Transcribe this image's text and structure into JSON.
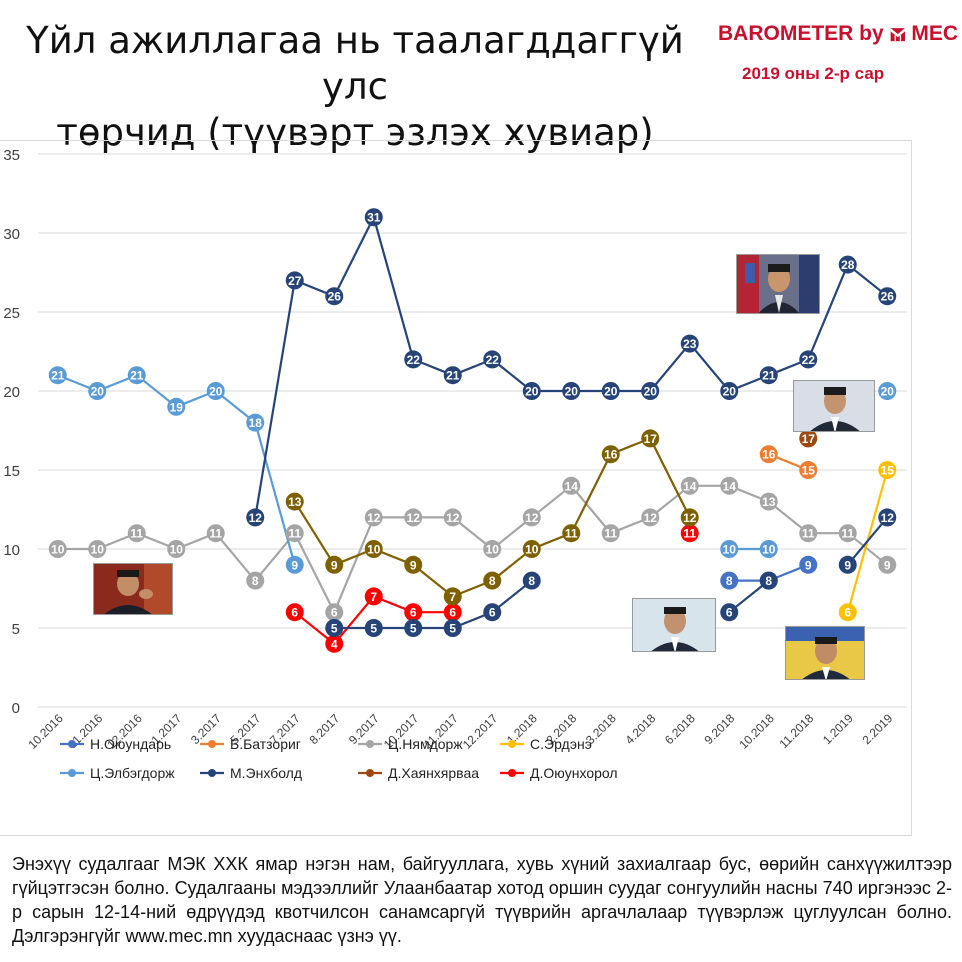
{
  "header": {
    "title_line1": "Үйл ажиллагаа нь таалагддаггүй улс",
    "title_line2": "төрчид (түүвэрт эзлэх хувиар)",
    "brand": "BAROMETER by",
    "brand_mark": "MEC",
    "subtitle": "2019 оны 2-р сар"
  },
  "colors": {
    "brand": "#c8102e",
    "grid": "#d9d9d9"
  },
  "chart_data": {
    "type": "line",
    "ylim": [
      0,
      35
    ],
    "yticks": [
      0,
      5,
      10,
      15,
      20,
      25,
      30,
      35
    ],
    "grid": true,
    "legend_position": "bottom",
    "categories": [
      "10.2016",
      "11.2016",
      "12.2016",
      "1.2017",
      "3.2017",
      "5.2017",
      "7.2017",
      "8.2017",
      "9.2017",
      "10.2017",
      "11.2017",
      "12.2017",
      "1.2018",
      "2.2018",
      "3.2018",
      "4.2018",
      "6.2018",
      "9.2018",
      "10.2018",
      "11.2018",
      "1.2019",
      "2.2019"
    ],
    "series": [
      {
        "name": "Н.Оюундарь",
        "color": "#4472c4",
        "values": [
          null,
          null,
          null,
          null,
          null,
          null,
          null,
          null,
          null,
          null,
          null,
          null,
          null,
          null,
          null,
          null,
          null,
          8,
          8,
          9,
          null,
          null
        ]
      },
      {
        "name": "Б.Батзориг",
        "color": "#ed7d31",
        "values": [
          null,
          null,
          null,
          null,
          null,
          null,
          null,
          null,
          null,
          null,
          null,
          null,
          null,
          null,
          null,
          null,
          null,
          null,
          16,
          15,
          null,
          null
        ]
      },
      {
        "name": "Ц.Нямдорж",
        "color": "#a5a5a5",
        "values": [
          10,
          10,
          11,
          10,
          11,
          8,
          11,
          6,
          12,
          12,
          12,
          10,
          12,
          14,
          11,
          12,
          14,
          14,
          13,
          11,
          11,
          9
        ]
      },
      {
        "name": "С.Эрдэнэ",
        "color": "#ffc000",
        "values": [
          null,
          null,
          null,
          null,
          null,
          null,
          null,
          null,
          null,
          null,
          null,
          null,
          null,
          null,
          null,
          null,
          null,
          null,
          null,
          null,
          6,
          15
        ]
      },
      {
        "name": "Ц.Элбэгдорж",
        "color": "#5b9bd5",
        "values": [
          21,
          20,
          21,
          19,
          20,
          18,
          9,
          null,
          null,
          null,
          null,
          null,
          null,
          null,
          null,
          null,
          null,
          10,
          10,
          null,
          null,
          20
        ]
      },
      {
        "name": "М.Энхболд",
        "color": "#264478",
        "values": [
          null,
          null,
          null,
          null,
          null,
          12,
          27,
          26,
          31,
          22,
          21,
          22,
          20,
          20,
          20,
          20,
          23,
          20,
          21,
          22,
          28,
          26
        ]
      },
      {
        "name": "Д.Хаянхярваа",
        "color": "#9e480e",
        "values": [
          null,
          null,
          null,
          null,
          null,
          null,
          null,
          null,
          null,
          null,
          null,
          null,
          null,
          null,
          null,
          null,
          null,
          null,
          null,
          17,
          null,
          null
        ]
      },
      {
        "name": "Д.Оюунхорол",
        "color": "#ff0000",
        "values": [
          null,
          null,
          null,
          null,
          null,
          null,
          6,
          4,
          7,
          6,
          6,
          null,
          null,
          null,
          null,
          null,
          11,
          null,
          null,
          null,
          null,
          null
        ]
      },
      {
        "name": "",
        "color": "#264478",
        "values": [
          null,
          null,
          null,
          null,
          null,
          null,
          null,
          5,
          5,
          5,
          5,
          6,
          8,
          null,
          null,
          null,
          null,
          6,
          8,
          null,
          9,
          12
        ]
      },
      {
        "name": "",
        "color": "#7f6000",
        "values": [
          null,
          null,
          null,
          null,
          null,
          null,
          13,
          9,
          10,
          9,
          7,
          8,
          10,
          11,
          16,
          17,
          12,
          null,
          null,
          null,
          null,
          null
        ]
      }
    ]
  },
  "footer": {
    "text": "Энэхүү судалгааг МЭК ХХК ямар нэгэн нам, байгууллага, хувь хүний захиалгаар бус, өөрийн санхүүжилтээр гүйцэтгэсэн болно. Судалгааны мэдээллийг Улаанбаатар хотод оршин суудаг сонгуулийн насны 740 иргэнээс 2-р сарын 12-14-ний өдрүүдэд квотчилсон санамсаргүй түүврийн аргачлалаар түүвэрлэж цуглуулсан болно. Дэлгэрэнгүйг www.mec.mn хуудаснаас үзнэ үү."
  }
}
